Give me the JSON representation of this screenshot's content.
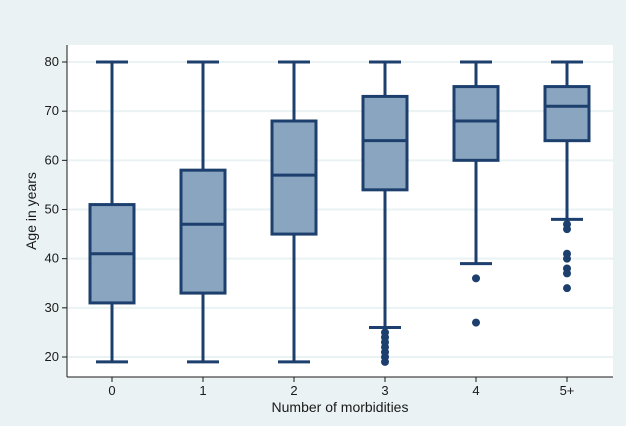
{
  "chart_data": {
    "type": "box",
    "title": "",
    "xlabel": "Number of morbidities",
    "ylabel": "Age in years",
    "ylim": [
      18,
      83
    ],
    "yticks": [
      20,
      30,
      40,
      50,
      60,
      70,
      80
    ],
    "grid": true,
    "categories": [
      "0",
      "1",
      "2",
      "3",
      "4",
      "5+"
    ],
    "boxes": [
      {
        "category": "0",
        "whisker_low": 19,
        "q1": 31,
        "median": 41,
        "q3": 51,
        "whisker_high": 80,
        "outliers": []
      },
      {
        "category": "1",
        "whisker_low": 19,
        "q1": 33,
        "median": 47,
        "q3": 58,
        "whisker_high": 80,
        "outliers": []
      },
      {
        "category": "2",
        "whisker_low": 19,
        "q1": 45,
        "median": 57,
        "q3": 68,
        "whisker_high": 80,
        "outliers": []
      },
      {
        "category": "3",
        "whisker_low": 26,
        "q1": 54,
        "median": 64,
        "q3": 73,
        "whisker_high": 80,
        "outliers": [
          25,
          24,
          23,
          22,
          21,
          20,
          19
        ]
      },
      {
        "category": "4",
        "whisker_low": 39,
        "q1": 60,
        "median": 68,
        "q3": 75,
        "whisker_high": 80,
        "outliers": [
          36,
          27
        ]
      },
      {
        "category": "5+",
        "whisker_low": 48,
        "q1": 64,
        "median": 71,
        "q3": 75,
        "whisker_high": 80,
        "outliers": [
          47,
          46,
          41,
          40,
          38,
          37,
          34
        ]
      }
    ],
    "colors": {
      "box_fill": "#8aa5bf",
      "box_stroke": "#1c3f6e",
      "plot_background": "#ffffff",
      "figure_background": "#eaf2f3"
    }
  }
}
